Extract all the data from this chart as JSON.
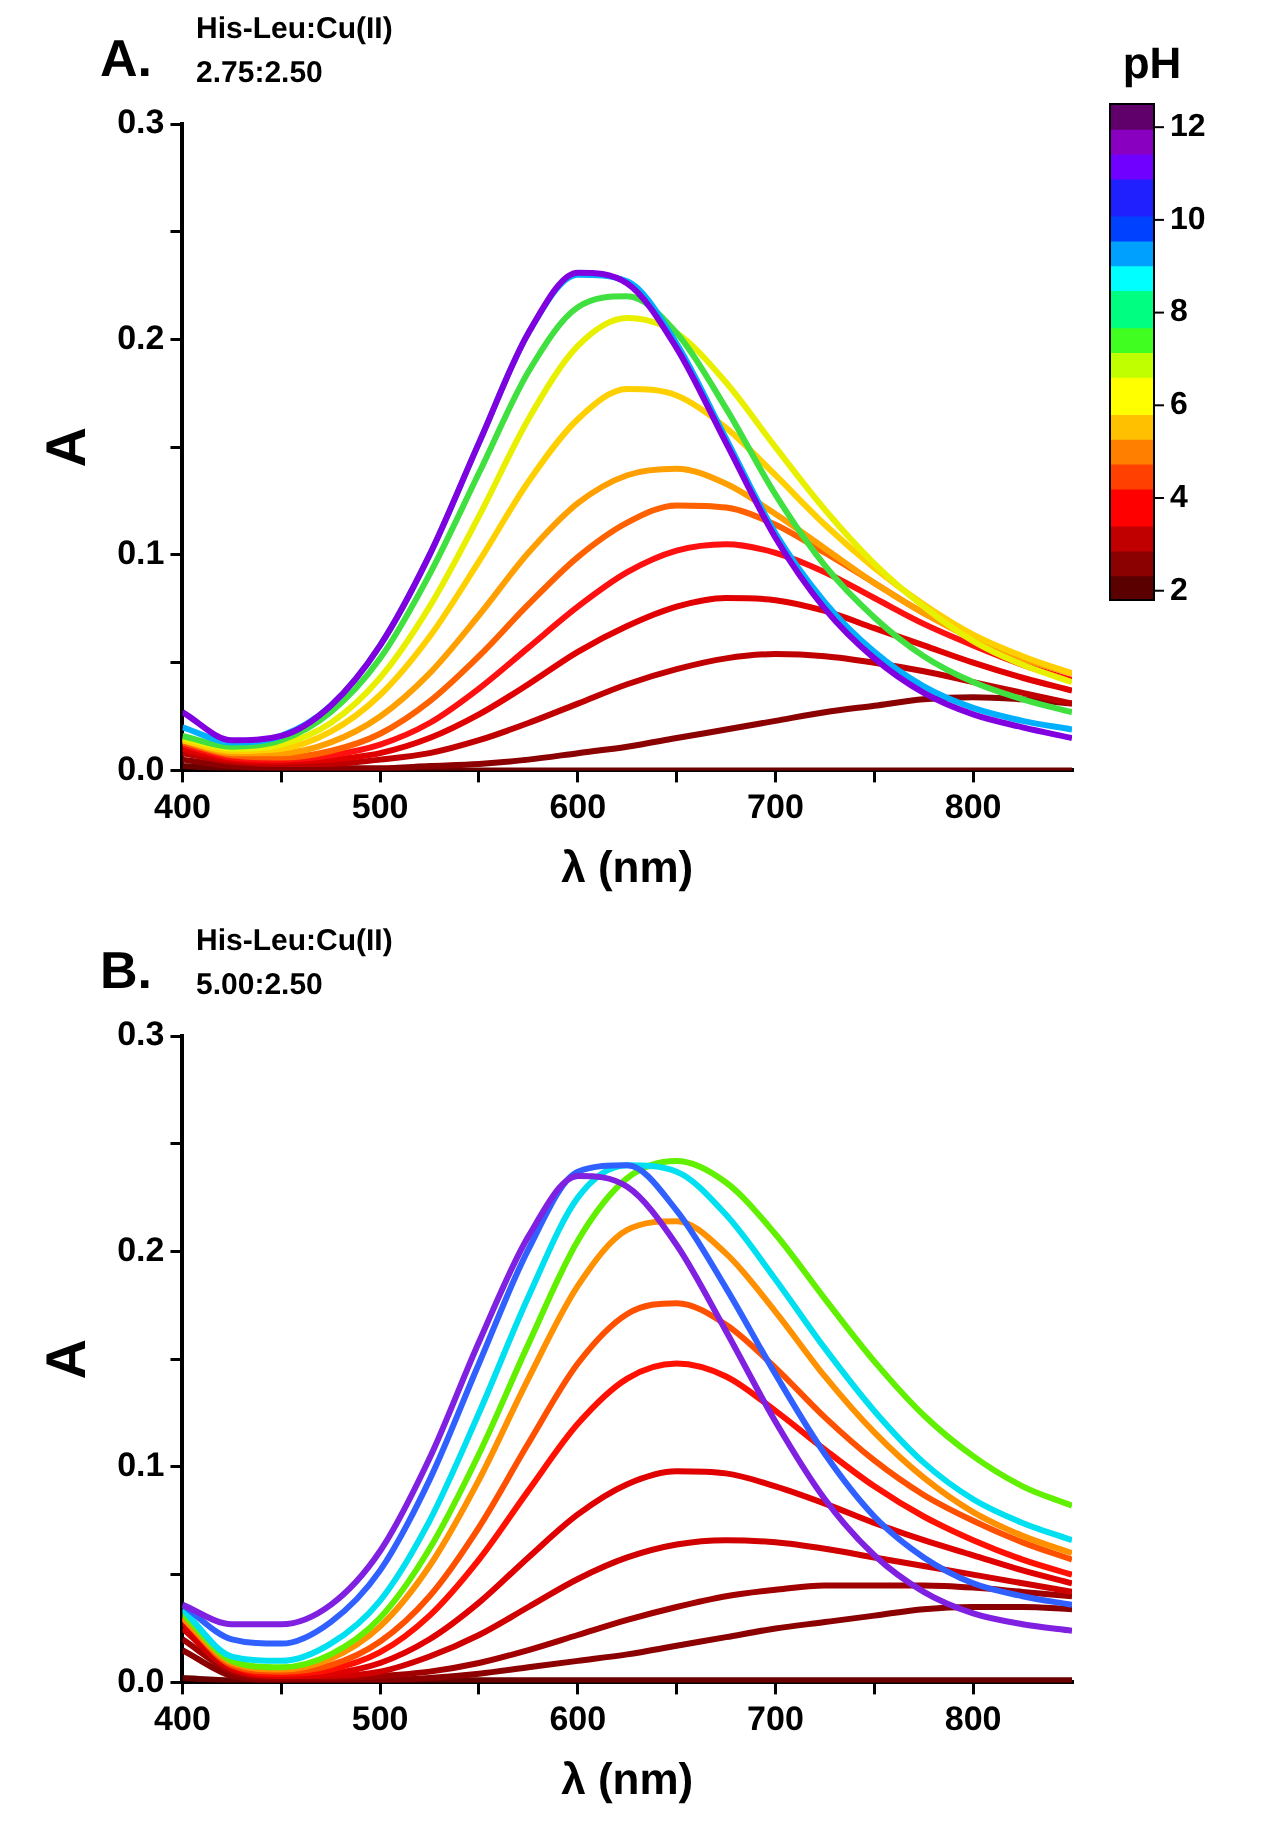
{
  "chart_data": [
    {
      "type": "line",
      "title": "A.",
      "annotations": [
        "His-Leu:Cu(II)",
        "2.75:2.50"
      ],
      "xlabel": "λ (nm)",
      "ylabel": "A",
      "marker": "none",
      "legend": false,
      "x": [
        400,
        425,
        450,
        475,
        500,
        525,
        550,
        575,
        600,
        625,
        650,
        675,
        700,
        725,
        750,
        775,
        800,
        825,
        850
      ],
      "xlim": [
        400,
        850
      ],
      "xticks": [
        400,
        {
          "value": 450,
          "label": null
        },
        500,
        {
          "value": 550,
          "label": null
        },
        600,
        {
          "value": 650,
          "label": null
        },
        700,
        {
          "value": 750,
          "label": null
        },
        800
      ],
      "ylim": [
        0,
        0.3
      ],
      "yticks": [
        {
          "value": 0,
          "label": "0.0"
        },
        {
          "value": 0.05,
          "label": null
        },
        0.1,
        {
          "value": 0.15,
          "label": null
        },
        0.2,
        {
          "value": 0.25,
          "label": null
        },
        0.3
      ],
      "clabel": "pH",
      "clim": [
        1.8,
        12.5
      ],
      "cticks": [
        2,
        4,
        6,
        8,
        10,
        12
      ],
      "series": [
        {
          "color": "#6b0000",
          "values": [
            0.002,
            0.001,
            0.001,
            0,
            0,
            0,
            0,
            0,
            0,
            0,
            0,
            0,
            0,
            0,
            0,
            0,
            0,
            0,
            0
          ]
        },
        {
          "color": "#8b0000",
          "values": [
            0.005,
            0.002,
            0.001,
            0.001,
            0.001,
            0.002,
            0.003,
            0.005,
            0.008,
            0.011,
            0.015,
            0.019,
            0.023,
            0.027,
            0.03,
            0.033,
            0.034,
            0.033,
            0.031
          ]
        },
        {
          "color": "#c00000",
          "values": [
            0.008,
            0.004,
            0.003,
            0.003,
            0.005,
            0.008,
            0.014,
            0.022,
            0.031,
            0.04,
            0.047,
            0.052,
            0.054,
            0.053,
            0.05,
            0.046,
            0.041,
            0.036,
            0.031
          ]
        },
        {
          "color": "#e00000",
          "values": [
            0.01,
            0.005,
            0.004,
            0.005,
            0.008,
            0.015,
            0.026,
            0.04,
            0.055,
            0.067,
            0.076,
            0.08,
            0.079,
            0.074,
            0.066,
            0.058,
            0.05,
            0.043,
            0.037
          ]
        },
        {
          "color": "#ff1010",
          "values": [
            0.012,
            0.006,
            0.005,
            0.007,
            0.012,
            0.022,
            0.038,
            0.057,
            0.076,
            0.092,
            0.102,
            0.105,
            0.101,
            0.092,
            0.08,
            0.068,
            0.058,
            0.049,
            0.042
          ]
        },
        {
          "color": "#ff6000",
          "values": [
            0.013,
            0.007,
            0.006,
            0.009,
            0.017,
            0.032,
            0.053,
            0.077,
            0.099,
            0.115,
            0.123,
            0.122,
            0.114,
            0.101,
            0.087,
            0.073,
            0.062,
            0.052,
            0.045
          ]
        },
        {
          "color": "#ffa000",
          "values": [
            0.014,
            0.008,
            0.008,
            0.013,
            0.025,
            0.045,
            0.072,
            0.101,
            0.124,
            0.137,
            0.14,
            0.133,
            0.119,
            0.103,
            0.087,
            0.073,
            0.061,
            0.052,
            0.045
          ]
        },
        {
          "color": "#ffd000",
          "values": [
            0.014,
            0.009,
            0.01,
            0.018,
            0.035,
            0.062,
            0.097,
            0.134,
            0.163,
            0.177,
            0.174,
            0.159,
            0.137,
            0.114,
            0.094,
            0.077,
            0.063,
            0.053,
            0.045
          ]
        },
        {
          "color": "#e8f000",
          "values": [
            0.015,
            0.01,
            0.012,
            0.022,
            0.043,
            0.076,
            0.118,
            0.163,
            0.197,
            0.21,
            0.203,
            0.18,
            0.15,
            0.121,
            0.096,
            0.076,
            0.06,
            0.049,
            0.041
          ]
        },
        {
          "color": "#40e040",
          "values": [
            0.016,
            0.011,
            0.014,
            0.027,
            0.052,
            0.091,
            0.138,
            0.185,
            0.215,
            0.22,
            0.203,
            0.168,
            0.128,
            0.095,
            0.071,
            0.053,
            0.041,
            0.033,
            0.027
          ]
        },
        {
          "color": "#00b0ff",
          "values": [
            0.02,
            0.013,
            0.016,
            0.03,
            0.058,
            0.1,
            0.152,
            0.203,
            0.23,
            0.227,
            0.198,
            0.154,
            0.11,
            0.078,
            0.055,
            0.039,
            0.029,
            0.023,
            0.019
          ]
        },
        {
          "color": "#8000e0",
          "values": [
            0.027,
            0.014,
            0.016,
            0.03,
            0.058,
            0.1,
            0.152,
            0.203,
            0.231,
            0.226,
            0.196,
            0.152,
            0.108,
            0.075,
            0.052,
            0.036,
            0.026,
            0.02,
            0.015
          ]
        }
      ]
    },
    {
      "type": "line",
      "title": "B.",
      "annotations": [
        "His-Leu:Cu(II)",
        "5.00:2.50"
      ],
      "xlabel": "λ (nm)",
      "ylabel": "A",
      "marker": "none",
      "legend": false,
      "x": [
        400,
        425,
        450,
        475,
        500,
        525,
        550,
        575,
        600,
        625,
        650,
        675,
        700,
        725,
        750,
        775,
        800,
        825,
        850
      ],
      "xlim": [
        400,
        850
      ],
      "xticks": [
        400,
        {
          "value": 450,
          "label": null
        },
        500,
        {
          "value": 550,
          "label": null
        },
        600,
        {
          "value": 650,
          "label": null
        },
        700,
        {
          "value": 750,
          "label": null
        },
        800
      ],
      "ylim": [
        0,
        0.3
      ],
      "yticks": [
        {
          "value": 0,
          "label": "0.0"
        },
        {
          "value": 0.05,
          "label": null
        },
        0.1,
        {
          "value": 0.15,
          "label": null
        },
        0.2,
        {
          "value": 0.25,
          "label": null
        },
        0.3
      ],
      "series": [
        {
          "color": "#6b0000",
          "values": [
            0.002,
            0.001,
            0.001,
            0.001,
            0.001,
            0.001,
            0.001,
            0.001,
            0.001,
            0.001,
            0.001,
            0.001,
            0.001,
            0.001,
            0.001,
            0.001,
            0.001,
            0.001,
            0.001
          ]
        },
        {
          "color": "#8b0000",
          "values": [
            0.015,
            0.003,
            0.001,
            0.001,
            0.001,
            0.002,
            0.004,
            0.007,
            0.01,
            0.013,
            0.017,
            0.021,
            0.025,
            0.028,
            0.031,
            0.034,
            0.035,
            0.035,
            0.034
          ]
        },
        {
          "color": "#a00000",
          "values": [
            0.02,
            0.005,
            0.002,
            0.002,
            0.003,
            0.005,
            0.009,
            0.015,
            0.022,
            0.029,
            0.035,
            0.04,
            0.043,
            0.045,
            0.045,
            0.045,
            0.044,
            0.042,
            0.04
          ]
        },
        {
          "color": "#d00000",
          "values": [
            0.025,
            0.006,
            0.003,
            0.003,
            0.005,
            0.012,
            0.022,
            0.035,
            0.048,
            0.058,
            0.064,
            0.066,
            0.065,
            0.062,
            0.058,
            0.054,
            0.05,
            0.046,
            0.042
          ]
        },
        {
          "color": "#e00000",
          "values": [
            0.028,
            0.007,
            0.003,
            0.004,
            0.009,
            0.02,
            0.037,
            0.058,
            0.078,
            0.092,
            0.098,
            0.097,
            0.091,
            0.083,
            0.074,
            0.066,
            0.059,
            0.052,
            0.046
          ]
        },
        {
          "color": "#ff1000",
          "values": [
            0.03,
            0.008,
            0.004,
            0.006,
            0.014,
            0.031,
            0.057,
            0.089,
            0.12,
            0.141,
            0.148,
            0.142,
            0.126,
            0.108,
            0.091,
            0.077,
            0.066,
            0.057,
            0.05
          ]
        },
        {
          "color": "#ff5000",
          "values": [
            0.03,
            0.008,
            0.005,
            0.008,
            0.019,
            0.04,
            0.072,
            0.111,
            0.148,
            0.171,
            0.176,
            0.166,
            0.146,
            0.123,
            0.103,
            0.087,
            0.075,
            0.065,
            0.057
          ]
        },
        {
          "color": "#ff9000",
          "values": [
            0.03,
            0.009,
            0.006,
            0.011,
            0.026,
            0.054,
            0.094,
            0.141,
            0.184,
            0.21,
            0.214,
            0.199,
            0.172,
            0.142,
            0.116,
            0.095,
            0.079,
            0.068,
            0.06
          ]
        },
        {
          "color": "#60f000",
          "values": [
            0.032,
            0.01,
            0.007,
            0.013,
            0.03,
            0.062,
            0.106,
            0.157,
            0.205,
            0.234,
            0.242,
            0.232,
            0.208,
            0.178,
            0.149,
            0.124,
            0.105,
            0.091,
            0.082
          ]
        },
        {
          "color": "#00e0f0",
          "values": [
            0.034,
            0.012,
            0.01,
            0.018,
            0.038,
            0.075,
            0.125,
            0.179,
            0.225,
            0.24,
            0.237,
            0.217,
            0.187,
            0.155,
            0.126,
            0.102,
            0.085,
            0.074,
            0.066
          ]
        },
        {
          "color": "#3060ff",
          "values": [
            0.036,
            0.02,
            0.018,
            0.028,
            0.052,
            0.094,
            0.148,
            0.201,
            0.237,
            0.24,
            0.219,
            0.183,
            0.143,
            0.106,
            0.077,
            0.058,
            0.046,
            0.04,
            0.036
          ]
        },
        {
          "color": "#8020e0",
          "values": [
            0.036,
            0.027,
            0.027,
            0.036,
            0.061,
            0.104,
            0.158,
            0.207,
            0.235,
            0.23,
            0.203,
            0.163,
            0.121,
            0.085,
            0.059,
            0.042,
            0.032,
            0.027,
            0.024
          ]
        }
      ]
    }
  ]
}
